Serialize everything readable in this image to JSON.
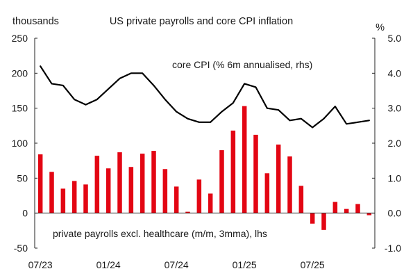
{
  "chart_data": {
    "type": "bar+line",
    "title": "US private payrolls and core CPI inflation",
    "left_unit": "thousands",
    "right_unit": "%",
    "left_axis": {
      "min": -50,
      "max": 250,
      "ticks": [
        "250",
        "200",
        "150",
        "100",
        "50",
        "0",
        "-50"
      ],
      "tick_values": [
        250,
        200,
        150,
        100,
        50,
        0,
        -50
      ]
    },
    "right_axis": {
      "min": -1.0,
      "max": 5.0,
      "ticks": [
        "5.0",
        "4.0",
        "3.0",
        "2.0",
        "1.0",
        "0.0",
        "-1.0"
      ],
      "tick_values": [
        5.0,
        4.0,
        3.0,
        2.0,
        1.0,
        0.0,
        -1.0
      ]
    },
    "x_tick_labels": [
      {
        "label": "07/23",
        "month_index": 0
      },
      {
        "label": "01/24",
        "month_index": 6
      },
      {
        "label": "07/24",
        "month_index": 12
      },
      {
        "label": "01/25",
        "month_index": 18
      },
      {
        "label": "07/25",
        "month_index": 24
      }
    ],
    "bar_series": {
      "name": "private payrolls excl. healthcare (m/m, 3mma), lhs",
      "color": "#e30613",
      "values": [
        84,
        59,
        35,
        46,
        41,
        82,
        64,
        87,
        66,
        85,
        89,
        63,
        38,
        2,
        48,
        28,
        90,
        118,
        153,
        112,
        57,
        98,
        81,
        39,
        -15,
        -24,
        16,
        6,
        13,
        -3
      ]
    },
    "line_series": {
      "name": "core CPI (% 6m annualised, rhs)",
      "color": "#000000",
      "values": [
        4.2,
        3.7,
        3.65,
        3.25,
        3.1,
        3.25,
        3.55,
        3.85,
        4.0,
        4.0,
        3.65,
        3.25,
        2.9,
        2.7,
        2.6,
        2.6,
        2.9,
        3.15,
        3.7,
        3.6,
        3.0,
        2.95,
        2.65,
        2.7,
        2.45,
        2.7,
        3.05,
        2.55,
        2.6,
        2.65
      ]
    },
    "grid": false,
    "legend": "inline annotations"
  }
}
